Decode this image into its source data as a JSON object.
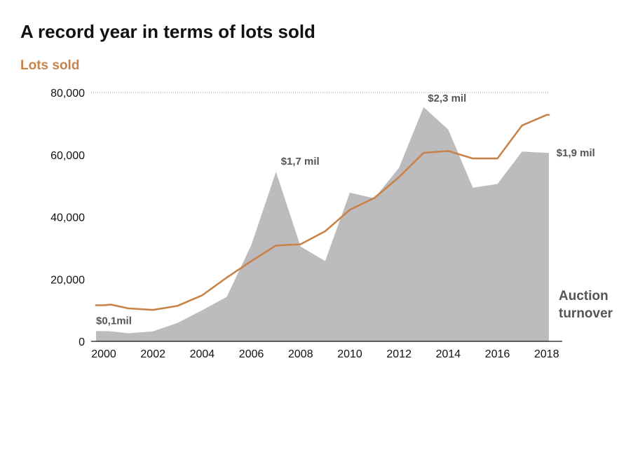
{
  "title": "A record year in terms of lots sold",
  "subtitle": "Lots sold",
  "colors": {
    "line": "#c8834a",
    "area": "#bcbcbe",
    "text": "#111111",
    "annotation": "#555555"
  },
  "chart_data": {
    "type": "area",
    "title": "A record year in terms of lots sold",
    "ylabel": "Lots sold",
    "xlabel": "",
    "ylim": [
      0,
      80000
    ],
    "xlim": [
      1999.75,
      2018.1
    ],
    "grid": "top dotted line only",
    "x_ticks": [
      "2000",
      "2002",
      "2004",
      "2006",
      "2008",
      "2010",
      "2012",
      "2014",
      "2016",
      "2018"
    ],
    "y_ticks": [
      "0",
      "20,000",
      "40,000",
      "60,000",
      "80,000"
    ],
    "x_tick_values": [
      2000,
      2002,
      2004,
      2006,
      2008,
      2010,
      2012,
      2014,
      2016,
      2018
    ],
    "y_tick_values": [
      0,
      20000,
      40000,
      60000,
      80000
    ],
    "series": [
      {
        "name": "Auction turnover",
        "kind": "area",
        "x": [
          2000,
          2000.3,
          2001,
          2002,
          2003,
          2004,
          2005,
          2006,
          2007,
          2008,
          2009,
          2010,
          2011,
          2012,
          2013,
          2014,
          2015,
          2016,
          2017,
          2018,
          2018.1
        ],
        "y": [
          3300,
          3200,
          2600,
          3200,
          5900,
          10000,
          14300,
          31000,
          54500,
          30500,
          25800,
          47800,
          46000,
          55800,
          75300,
          68100,
          49400,
          50600,
          61000,
          60600,
          60600
        ]
      },
      {
        "name": "Lots sold",
        "kind": "line",
        "x": [
          2000,
          2000.3,
          2001,
          2002,
          2003,
          2004,
          2005,
          2006,
          2007,
          2008,
          2009,
          2010,
          2011,
          2012,
          2013,
          2014,
          2015,
          2016,
          2017,
          2018,
          2018.1
        ],
        "y": [
          11600,
          11800,
          10600,
          10100,
          11400,
          14800,
          20500,
          25800,
          30800,
          31200,
          35400,
          42300,
          46100,
          52800,
          60600,
          61200,
          58800,
          58800,
          69400,
          72800,
          72800
        ]
      }
    ],
    "annotations": [
      {
        "text": "$0,1mil",
        "x": 2000,
        "y": 3300
      },
      {
        "text": "$1,7 mil",
        "x": 2007,
        "y": 54500
      },
      {
        "text": "$2,3 mil",
        "x": 2013,
        "y": 75300
      },
      {
        "text": "$1,9 mil",
        "x": 2018,
        "y": 60600
      }
    ],
    "legend": {
      "area_label_line1": "Auction",
      "area_label_line2": "turnover",
      "placement": "right"
    }
  }
}
